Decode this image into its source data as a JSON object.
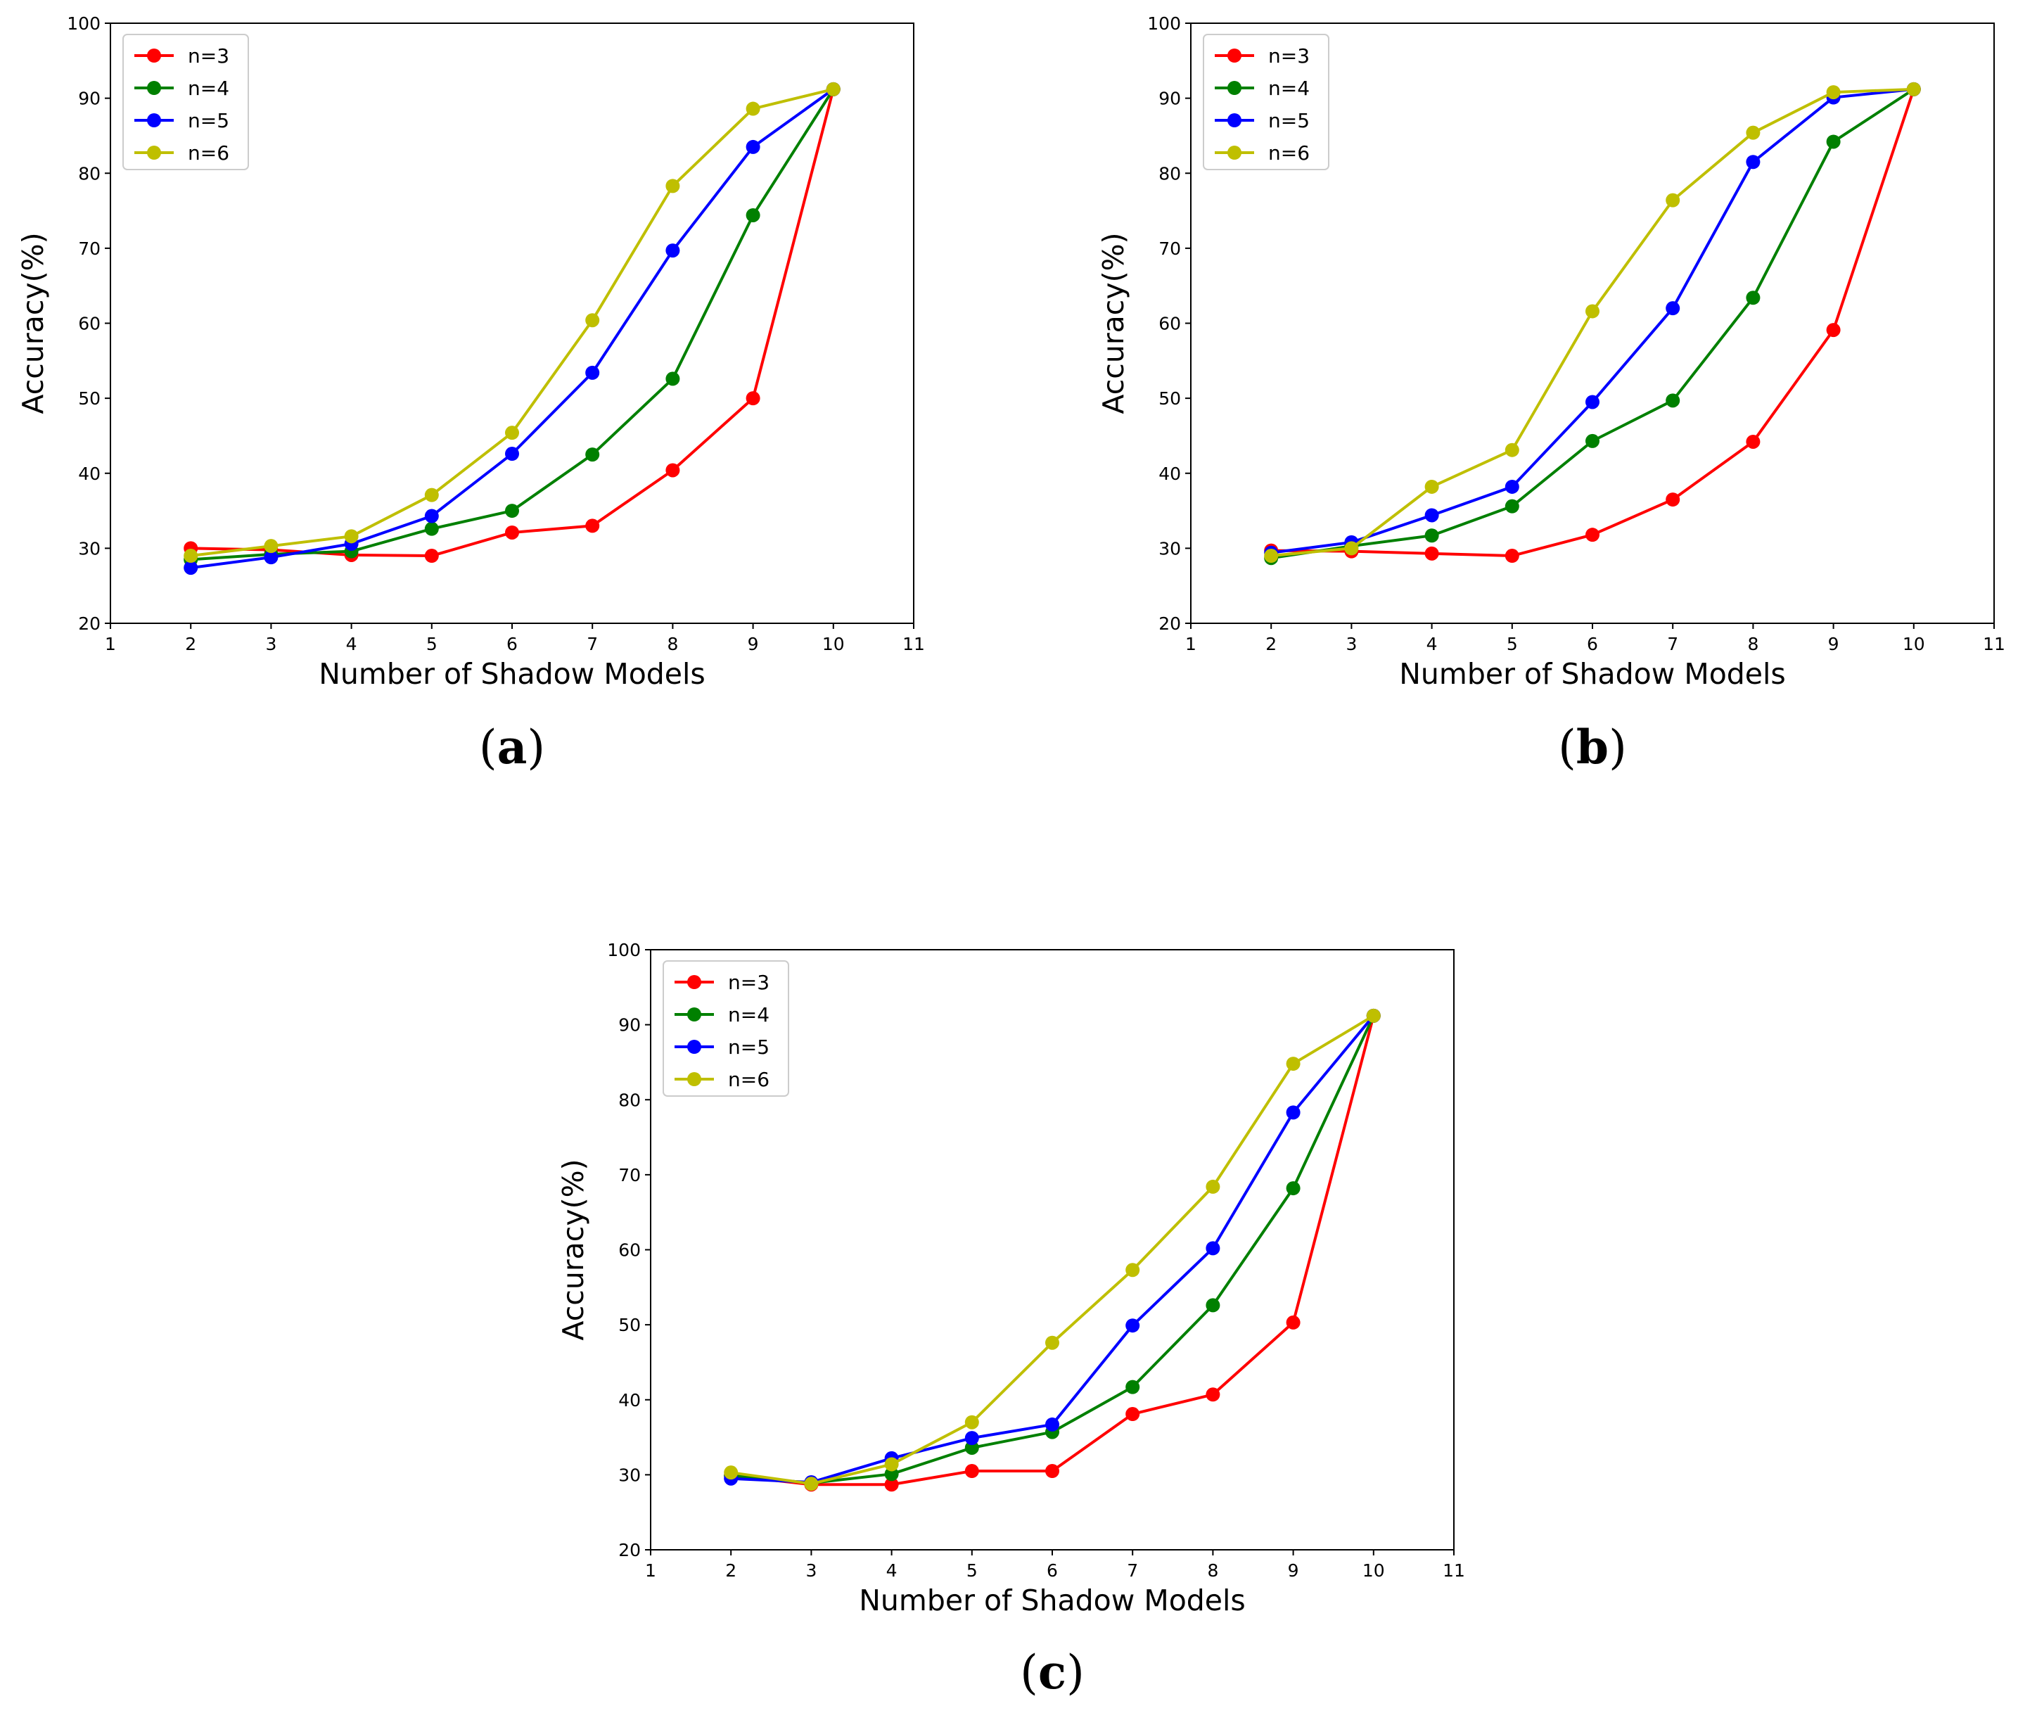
{
  "chart_data": [
    {
      "type": "line",
      "caption": {
        "open": "(",
        "letter": "a",
        "close": ")"
      },
      "xlabel": "Number of Shadow Models",
      "ylabel": "Accuracy(%)",
      "xlim": [
        1,
        11
      ],
      "ylim": [
        20,
        100
      ],
      "xticks": [
        1,
        2,
        3,
        4,
        5,
        6,
        7,
        8,
        9,
        10,
        11
      ],
      "yticks": [
        20,
        30,
        40,
        50,
        60,
        70,
        80,
        90,
        100
      ],
      "legend_position": "top-left",
      "x": [
        2,
        3,
        4,
        5,
        6,
        7,
        8,
        9,
        10
      ],
      "series": [
        {
          "name": "n=3",
          "color": "#ff0000",
          "values": [
            30.0,
            29.8,
            29.1,
            29.0,
            32.1,
            33.0,
            40.4,
            50.0,
            91.2
          ]
        },
        {
          "name": "n=4",
          "color": "#008000",
          "values": [
            28.5,
            29.2,
            29.6,
            32.6,
            35.0,
            42.5,
            52.6,
            74.4,
            91.2
          ]
        },
        {
          "name": "n=5",
          "color": "#0000ff",
          "values": [
            27.4,
            28.8,
            30.6,
            34.3,
            42.6,
            53.4,
            69.7,
            83.5,
            91.2
          ]
        },
        {
          "name": "n=6",
          "color": "#bfbf00",
          "values": [
            29.0,
            30.3,
            31.6,
            37.1,
            45.4,
            60.4,
            78.3,
            88.6,
            91.2
          ]
        }
      ]
    },
    {
      "type": "line",
      "caption": {
        "open": "(",
        "letter": "b",
        "close": ")"
      },
      "xlabel": "Number of Shadow Models",
      "ylabel": "Accuracy(%)",
      "xlim": [
        1,
        11
      ],
      "ylim": [
        20,
        100
      ],
      "xticks": [
        1,
        2,
        3,
        4,
        5,
        6,
        7,
        8,
        9,
        10,
        11
      ],
      "yticks": [
        20,
        30,
        40,
        50,
        60,
        70,
        80,
        90,
        100
      ],
      "legend_position": "top-left",
      "x": [
        2,
        3,
        4,
        5,
        6,
        7,
        8,
        9,
        10
      ],
      "series": [
        {
          "name": "n=3",
          "color": "#ff0000",
          "values": [
            29.7,
            29.6,
            29.3,
            29.0,
            31.8,
            36.5,
            44.2,
            59.1,
            91.2
          ]
        },
        {
          "name": "n=4",
          "color": "#008000",
          "values": [
            28.7,
            30.3,
            31.7,
            35.6,
            44.3,
            49.7,
            63.4,
            84.2,
            91.2
          ]
        },
        {
          "name": "n=5",
          "color": "#0000ff",
          "values": [
            29.4,
            30.8,
            34.4,
            38.2,
            49.5,
            62.0,
            81.5,
            90.1,
            91.2
          ]
        },
        {
          "name": "n=6",
          "color": "#bfbf00",
          "values": [
            29.0,
            30.0,
            38.2,
            43.1,
            61.6,
            76.4,
            85.4,
            90.8,
            91.2
          ]
        }
      ]
    },
    {
      "type": "line",
      "caption": {
        "open": "(",
        "letter": "c",
        "close": ")"
      },
      "xlabel": "Number of Shadow Models",
      "ylabel": "Accuracy(%)",
      "xlim": [
        1,
        11
      ],
      "ylim": [
        20,
        100
      ],
      "xticks": [
        1,
        2,
        3,
        4,
        5,
        6,
        7,
        8,
        9,
        10,
        11
      ],
      "yticks": [
        20,
        30,
        40,
        50,
        60,
        70,
        80,
        90,
        100
      ],
      "legend_position": "top-left",
      "x": [
        2,
        3,
        4,
        5,
        6,
        7,
        8,
        9,
        10
      ],
      "series": [
        {
          "name": "n=3",
          "color": "#ff0000",
          "values": [
            29.9,
            28.7,
            28.7,
            30.5,
            30.5,
            38.1,
            40.7,
            50.3,
            91.2
          ]
        },
        {
          "name": "n=4",
          "color": "#008000",
          "values": [
            29.9,
            28.9,
            30.1,
            33.6,
            35.7,
            41.7,
            52.6,
            68.2,
            91.2
          ]
        },
        {
          "name": "n=5",
          "color": "#0000ff",
          "values": [
            29.5,
            29.0,
            32.2,
            34.9,
            36.7,
            49.9,
            60.2,
            78.3,
            91.2
          ]
        },
        {
          "name": "n=6",
          "color": "#bfbf00",
          "values": [
            30.3,
            28.8,
            31.4,
            37.0,
            47.6,
            57.3,
            68.4,
            84.8,
            91.2
          ]
        }
      ]
    }
  ]
}
